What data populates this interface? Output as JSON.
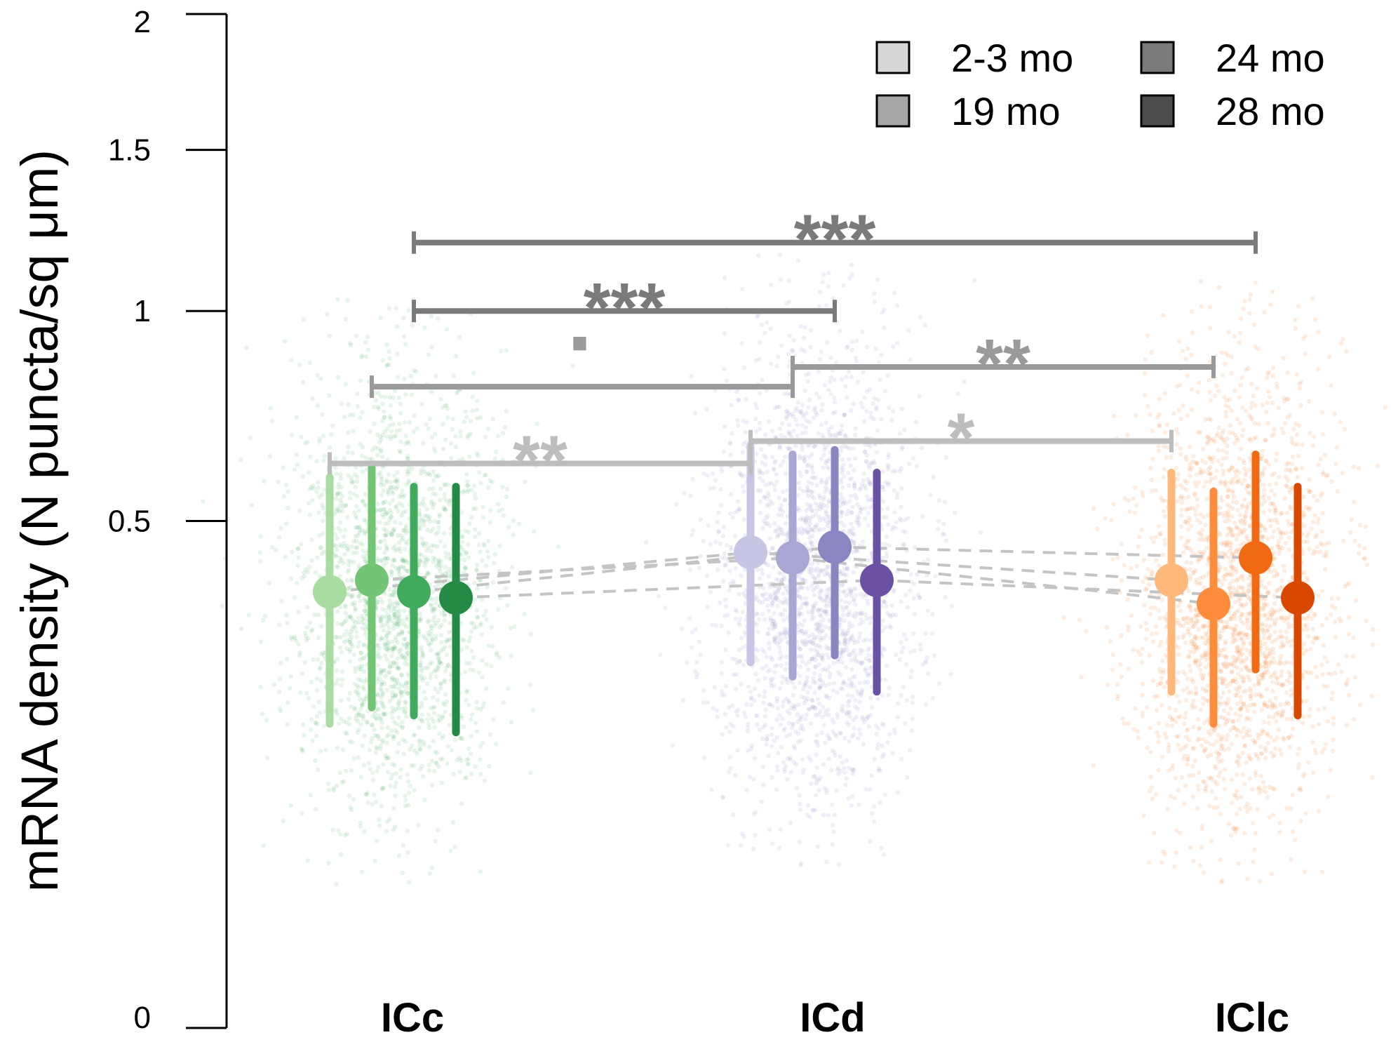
{
  "chart_data": {
    "type": "scatter",
    "title": "",
    "xlabel": "",
    "ylabel": "mRNA density (N puncta/sq μm)",
    "y_scale": "sqrt",
    "ylim": [
      0,
      2
    ],
    "yticks": [
      0,
      0.5,
      1,
      1.5,
      2
    ],
    "ytick_labels": [
      "0",
      "0.5",
      "1",
      "1.5",
      "2"
    ],
    "categories": [
      "ICc",
      "ICd",
      "IClc"
    ],
    "legend": {
      "placement": "top-right",
      "entries": [
        {
          "label": "2-3 mo",
          "shade": "#d6d6d6"
        },
        {
          "label": "19 mo",
          "shade": "#a6a6a6"
        },
        {
          "label": "24 mo",
          "shade": "#7a7a7a"
        },
        {
          "label": "28 mo",
          "shade": "#4d4d4d"
        }
      ]
    },
    "ages": [
      "2-3 mo",
      "19 mo",
      "24 mo",
      "28 mo"
    ],
    "region_colors": {
      "ICc": [
        "#a8dca0",
        "#74c476",
        "#41ab5d",
        "#238b45"
      ],
      "ICd": [
        "#c6c5e3",
        "#a9a6d3",
        "#8a86c2",
        "#6a51a3"
      ],
      "IClc": [
        "#fdb87a",
        "#fd8d3c",
        "#f16913",
        "#d94801"
      ]
    },
    "cloud_colors": {
      "ICc": "#41ab5d",
      "ICd": "#8a86c2",
      "IClc": "#f16913"
    },
    "series": [
      {
        "name": "ICc",
        "points": [
          {
            "age": "2-3 mo",
            "mean": 0.37,
            "lower": 0.18,
            "upper": 0.59
          },
          {
            "age": "19 mo",
            "mean": 0.39,
            "lower": 0.2,
            "upper": 0.61
          },
          {
            "age": "24 mo",
            "mean": 0.37,
            "lower": 0.19,
            "upper": 0.57
          },
          {
            "age": "28 mo",
            "mean": 0.36,
            "lower": 0.17,
            "upper": 0.57
          }
        ]
      },
      {
        "name": "ICd",
        "points": [
          {
            "age": "2-3 mo",
            "mean": 0.44,
            "lower": 0.26,
            "upper": 0.66
          },
          {
            "age": "19 mo",
            "mean": 0.43,
            "lower": 0.24,
            "upper": 0.64
          },
          {
            "age": "24 mo",
            "mean": 0.45,
            "lower": 0.27,
            "upper": 0.65
          },
          {
            "age": "28 mo",
            "mean": 0.39,
            "lower": 0.22,
            "upper": 0.6
          }
        ]
      },
      {
        "name": "IClc",
        "points": [
          {
            "age": "2-3 mo",
            "mean": 0.39,
            "lower": 0.22,
            "upper": 0.6
          },
          {
            "age": "19 mo",
            "mean": 0.35,
            "lower": 0.18,
            "upper": 0.56
          },
          {
            "age": "24 mo",
            "mean": 0.43,
            "lower": 0.25,
            "upper": 0.64
          },
          {
            "age": "28 mo",
            "mean": 0.36,
            "lower": 0.19,
            "upper": 0.57
          }
        ]
      }
    ],
    "clouds": [
      {
        "region": "ICc",
        "center": 0.36,
        "low": 0.04,
        "high": 1.05
      },
      {
        "region": "ICd",
        "center": 0.38,
        "low": 0.05,
        "high": 1.18
      },
      {
        "region": "IClc",
        "center": 0.34,
        "low": 0.04,
        "high": 1.1
      }
    ],
    "significance": [
      {
        "age": "2-3 mo",
        "from": "ICc",
        "to": "ICd",
        "y": 0.62,
        "label": "**"
      },
      {
        "age": "2-3 mo",
        "from": "ICd",
        "to": "IClc",
        "y": 0.67,
        "label": "*"
      },
      {
        "age": "19 mo",
        "from": "ICc",
        "to": "ICd",
        "y": 0.8,
        "label": "·"
      },
      {
        "age": "19 mo",
        "from": "ICd",
        "to": "IClc",
        "y": 0.85,
        "label": "**"
      },
      {
        "age": "24 mo",
        "from": "ICc",
        "to": "ICd",
        "y": 1.0,
        "label": "***"
      },
      {
        "age": "24 mo",
        "from": "ICc",
        "to": "IClc",
        "y": 1.2,
        "label": "***"
      }
    ]
  }
}
